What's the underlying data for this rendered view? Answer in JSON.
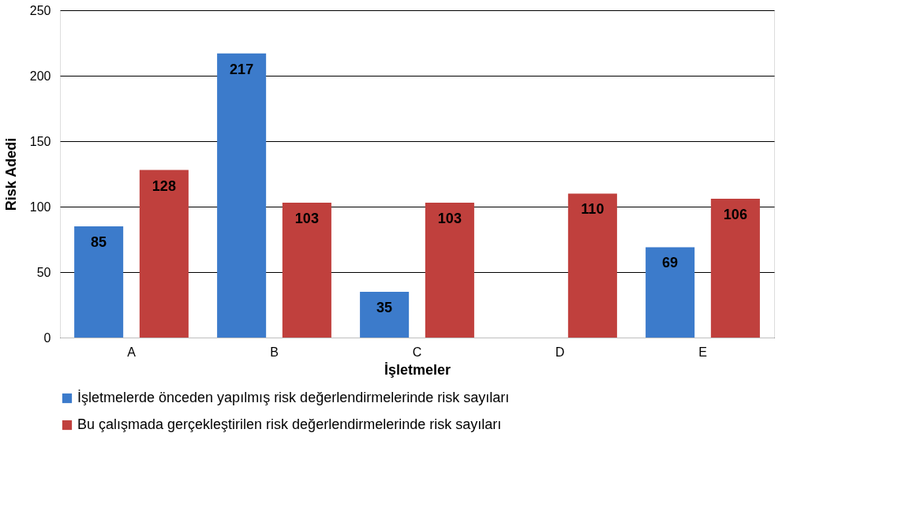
{
  "chart_data": {
    "type": "bar",
    "xlabel": "İşletmeler",
    "ylabel": "Risk Adedi",
    "categories": [
      "A",
      "B",
      "C",
      "D",
      "E"
    ],
    "series": [
      {
        "name": "İşletmelerde önceden yapılmış risk değerlendirmelerinde risk sayıları",
        "color": "#3c7bcb",
        "values": [
          85,
          217,
          35,
          null,
          69
        ]
      },
      {
        "name": "Bu çalışmada gerçekleştirilen risk değerlendirmelerinde  risk sayıları",
        "color": "#c0403d",
        "values": [
          128,
          103,
          103,
          110,
          106
        ]
      }
    ],
    "ylim": [
      0,
      250
    ],
    "yticks": [
      0,
      50,
      100,
      150,
      200,
      250
    ],
    "grid": "y",
    "legend": "bottom",
    "data_labels": true
  }
}
